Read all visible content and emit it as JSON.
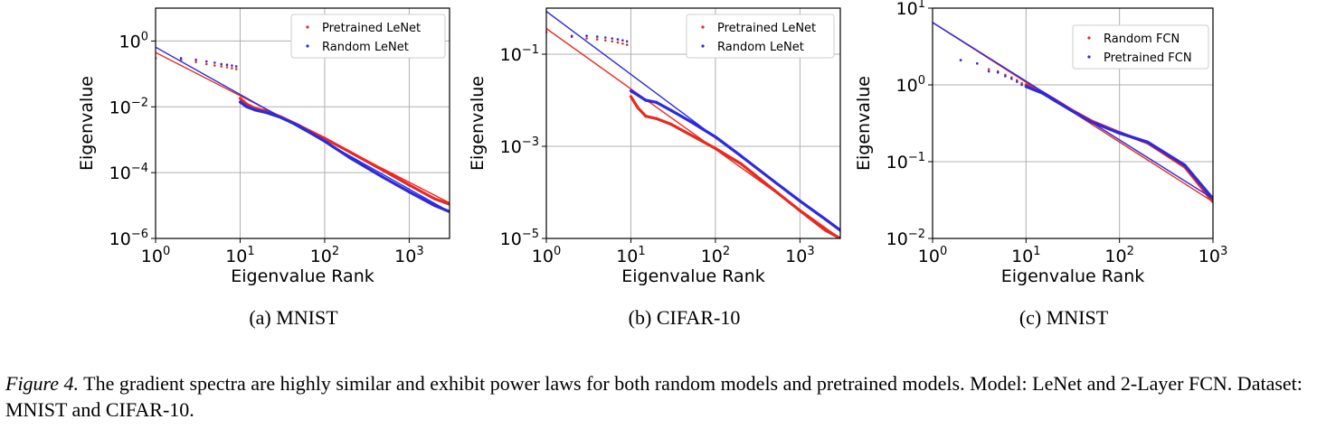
{
  "chart_data": [
    {
      "type": "scatter",
      "xscale": "log",
      "yscale": "log",
      "xlim": [
        1,
        3000
      ],
      "ylim": [
        1e-06,
        10
      ],
      "xlabel": "Eigenvalue Rank",
      "ylabel": "Eigenvalue",
      "xticks": [
        1,
        10,
        100,
        1000
      ],
      "yticks": [
        1e-06,
        0.0001,
        0.01,
        1
      ],
      "grid": true,
      "legend_position": "top-right",
      "subcaption": "(a) MNIST",
      "series": [
        {
          "name": "Pretrained LeNet",
          "color": "#e8291e",
          "points": [
            [
              1,
              0.3
            ],
            [
              2,
              0.27
            ],
            [
              3,
              0.23
            ],
            [
              4,
              0.2
            ],
            [
              5,
              0.18
            ],
            [
              6,
              0.17
            ],
            [
              7,
              0.16
            ],
            [
              8,
              0.15
            ],
            [
              9,
              0.14
            ],
            [
              10,
              0.018
            ],
            [
              12,
              0.012
            ],
            [
              15,
              0.009
            ],
            [
              20,
              0.0075
            ],
            [
              30,
              0.005
            ],
            [
              50,
              0.0027
            ],
            [
              100,
              0.0011
            ],
            [
              200,
              0.00042
            ],
            [
              500,
              0.000115
            ],
            [
              1000,
              4.2e-05
            ],
            [
              2000,
              1.6e-05
            ],
            [
              3000,
              1.1e-05
            ]
          ],
          "fit": [
            [
              1,
              0.45
            ],
            [
              3000,
              1.2e-05
            ]
          ]
        },
        {
          "name": "Random LeNet",
          "color": "#2a2ae0",
          "points": [
            [
              2,
              0.3
            ],
            [
              3,
              0.27
            ],
            [
              4,
              0.24
            ],
            [
              5,
              0.22
            ],
            [
              6,
              0.2
            ],
            [
              7,
              0.19
            ],
            [
              8,
              0.18
            ],
            [
              9,
              0.17
            ],
            [
              10,
              0.014
            ],
            [
              12,
              0.01
            ],
            [
              15,
              0.008
            ],
            [
              20,
              0.0068
            ],
            [
              30,
              0.0048
            ],
            [
              50,
              0.0026
            ],
            [
              100,
              0.0009
            ],
            [
              200,
              0.00028
            ],
            [
              500,
              7e-05
            ],
            [
              1000,
              2.6e-05
            ],
            [
              2000,
              1e-05
            ],
            [
              3000,
              6.5e-06
            ]
          ],
          "fit": [
            [
              1,
              0.65
            ],
            [
              3000,
              6.5e-06
            ]
          ]
        }
      ]
    },
    {
      "type": "scatter",
      "xscale": "log",
      "yscale": "log",
      "xlim": [
        1,
        3000
      ],
      "ylim": [
        1e-05,
        1
      ],
      "xlabel": "Eigenvalue Rank",
      "ylabel": "Eigenvalue",
      "xticks": [
        1,
        10,
        100,
        1000
      ],
      "yticks": [
        1e-05,
        0.001,
        0.1
      ],
      "grid": true,
      "legend_position": "top-right",
      "subcaption": "(b) CIFAR-10",
      "series": [
        {
          "name": "Pretrained LeNet",
          "color": "#e8291e",
          "points": [
            [
              1,
              0.3
            ],
            [
              2,
              0.25
            ],
            [
              3,
              0.22
            ],
            [
              4,
              0.21
            ],
            [
              5,
              0.2
            ],
            [
              6,
              0.19
            ],
            [
              7,
              0.18
            ],
            [
              8,
              0.17
            ],
            [
              9,
              0.16
            ],
            [
              10,
              0.012
            ],
            [
              12,
              0.007
            ],
            [
              15,
              0.0045
            ],
            [
              20,
              0.004
            ],
            [
              30,
              0.003
            ],
            [
              50,
              0.0018
            ],
            [
              100,
              0.0009
            ],
            [
              200,
              0.00042
            ],
            [
              500,
              0.00011
            ],
            [
              1000,
              4e-05
            ],
            [
              2000,
              1.5e-05
            ],
            [
              3000,
              1e-05
            ]
          ],
          "fit": [
            [
              1,
              0.36
            ],
            [
              3000,
              1e-05
            ]
          ]
        },
        {
          "name": "Random LeNet",
          "color": "#2a2ae0",
          "points": [
            [
              2,
              0.24
            ],
            [
              3,
              0.25
            ],
            [
              4,
              0.24
            ],
            [
              5,
              0.23
            ],
            [
              6,
              0.22
            ],
            [
              7,
              0.21
            ],
            [
              8,
              0.2
            ],
            [
              9,
              0.19
            ],
            [
              10,
              0.016
            ],
            [
              12,
              0.013
            ],
            [
              15,
              0.01
            ],
            [
              20,
              0.009
            ],
            [
              30,
              0.006
            ],
            [
              50,
              0.0035
            ],
            [
              100,
              0.0016
            ],
            [
              200,
              0.00062
            ],
            [
              500,
              0.00017
            ],
            [
              1000,
              6.5e-05
            ],
            [
              2000,
              2.6e-05
            ],
            [
              3000,
              1.5e-05
            ]
          ],
          "fit": [
            [
              1,
              0.85
            ],
            [
              3000,
              1.5e-05
            ]
          ]
        }
      ]
    },
    {
      "type": "scatter",
      "xscale": "log",
      "yscale": "log",
      "xlim": [
        1,
        1000
      ],
      "ylim": [
        0.01,
        10
      ],
      "xlabel": "Eigenvalue Rank",
      "ylabel": "Eigenvalue",
      "xticks": [
        1,
        10,
        100,
        1000
      ],
      "yticks": [
        0.01,
        0.1,
        1,
        10
      ],
      "grid": true,
      "legend_position": "top-right",
      "subcaption": "(c) MNIST",
      "series": [
        {
          "name": "Random FCN",
          "color": "#e8291e",
          "points": [
            [
              2,
              2.1
            ],
            [
              3,
              1.9
            ],
            [
              4,
              1.6
            ],
            [
              5,
              1.5
            ],
            [
              6,
              1.35
            ],
            [
              7,
              1.25
            ],
            [
              8,
              1.15
            ],
            [
              9,
              1.05
            ],
            [
              10,
              1.0
            ],
            [
              15,
              0.8
            ],
            [
              20,
              0.65
            ],
            [
              30,
              0.48
            ],
            [
              50,
              0.34
            ],
            [
              100,
              0.24
            ],
            [
              200,
              0.175
            ],
            [
              500,
              0.085
            ],
            [
              1000,
              0.03
            ]
          ],
          "fit": [
            [
              1,
              6.5
            ],
            [
              1000,
              0.03
            ]
          ]
        },
        {
          "name": "Pretrained FCN",
          "color": "#2a2ae0",
          "points": [
            [
              2,
              2.1
            ],
            [
              3,
              1.9
            ],
            [
              4,
              1.5
            ],
            [
              5,
              1.45
            ],
            [
              6,
              1.3
            ],
            [
              7,
              1.2
            ],
            [
              8,
              1.1
            ],
            [
              9,
              1.0
            ],
            [
              10,
              0.95
            ],
            [
              15,
              0.78
            ],
            [
              20,
              0.63
            ],
            [
              30,
              0.47
            ],
            [
              50,
              0.33
            ],
            [
              100,
              0.235
            ],
            [
              200,
              0.18
            ],
            [
              500,
              0.09
            ],
            [
              1000,
              0.033
            ]
          ],
          "fit": [
            [
              1,
              6.5
            ],
            [
              1000,
              0.033
            ]
          ]
        }
      ]
    }
  ],
  "caption": {
    "label": "Figure 4.",
    "text": " The gradient spectra are highly similar and exhibit power laws for both random models and pretrained models. Model: LeNet and 2-Layer FCN. Dataset: MNIST and CIFAR-10."
  }
}
